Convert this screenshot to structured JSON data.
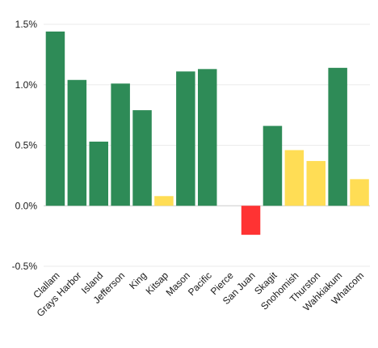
{
  "chart_data": {
    "type": "bar",
    "categories": [
      "Clallam",
      "Grays Harbor",
      "Island",
      "Jefferson",
      "King",
      "Kitsap",
      "Mason",
      "Pacific",
      "Pierce",
      "San Juan",
      "Skagit",
      "Snohomish",
      "Thurston",
      "Wahkiakum",
      "Whatcom"
    ],
    "values": [
      1.44,
      1.04,
      0.53,
      1.01,
      0.79,
      0.08,
      1.11,
      1.13,
      0.0,
      -0.24,
      0.66,
      0.46,
      0.37,
      1.14,
      0.22
    ],
    "bar_colors": [
      "#2e8b57",
      "#2e8b57",
      "#2e8b57",
      "#2e8b57",
      "#2e8b57",
      "#ffdd55",
      "#2e8b57",
      "#2e8b57",
      "#2e8b57",
      "#ff3333",
      "#2e8b57",
      "#ffdd55",
      "#ffdd55",
      "#2e8b57",
      "#ffdd55"
    ],
    "yticks": [
      {
        "value": 1.5,
        "label": "1.5%"
      },
      {
        "value": 1.0,
        "label": "1.0%"
      },
      {
        "value": 0.5,
        "label": "0.5%"
      },
      {
        "value": 0.0,
        "label": "0.0%"
      },
      {
        "value": -0.5,
        "label": "-0.5%"
      }
    ],
    "ylim": [
      -0.5,
      1.5
    ],
    "title": "",
    "xlabel": "",
    "ylabel": "",
    "grid": true,
    "legend": "none"
  }
}
